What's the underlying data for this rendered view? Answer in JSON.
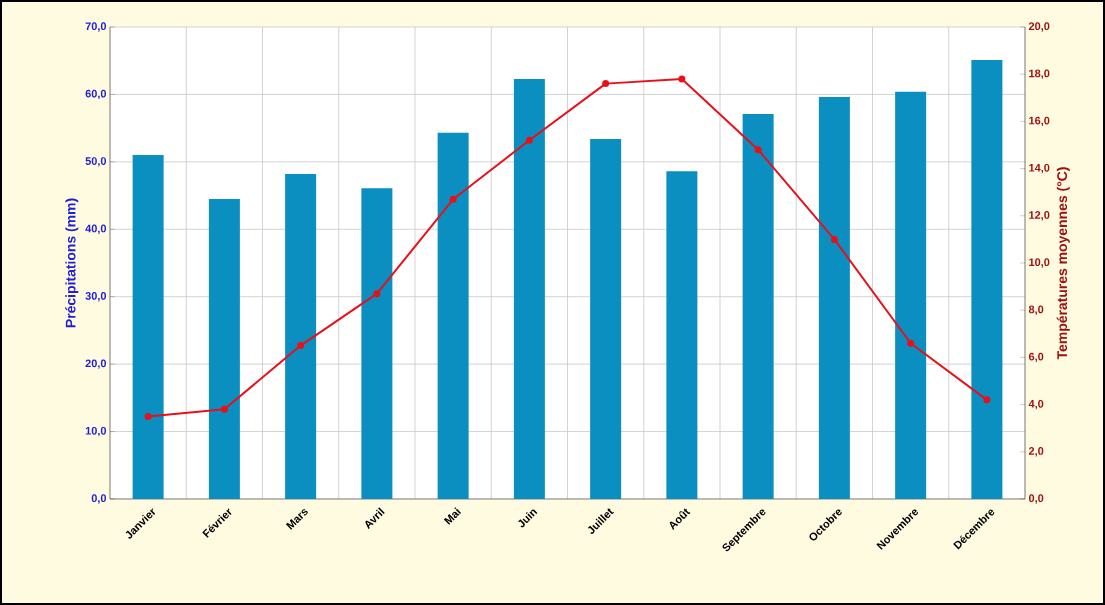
{
  "chart_data": {
    "type": "bar",
    "ylabel": "Précipitations (mm)",
    "y2label": "Températures moyennes (°C)",
    "categories": [
      "Janvier",
      "Février",
      "Mars",
      "Avril",
      "Mai",
      "Juin",
      "Juillet",
      "Août",
      "Septembre",
      "Octobre",
      "Novembre",
      "Décembre"
    ],
    "series": [
      {
        "color": "#0a8fc0",
        "values": [
          51.0,
          44.5,
          48.2,
          46.1,
          54.3,
          62.3,
          53.4,
          48.6,
          57.1,
          59.6,
          60.4,
          65.1
        ]
      },
      {
        "type": "line",
        "axis": "y2",
        "color": "#e8101a",
        "values": [
          3.5,
          3.8,
          6.5,
          8.7,
          12.7,
          15.2,
          17.6,
          17.8,
          14.8,
          11.0,
          6.6,
          4.2
        ]
      }
    ],
    "ylim": [
      0,
      70
    ],
    "yticks": [
      {
        "value": 0,
        "label": "0,0"
      },
      {
        "value": 10,
        "label": "10,0"
      },
      {
        "value": 20,
        "label": "20,0"
      },
      {
        "value": 30,
        "label": "30,0"
      },
      {
        "value": 40,
        "label": "40,0"
      },
      {
        "value": 50,
        "label": "50,0"
      },
      {
        "value": 60,
        "label": "60,0"
      },
      {
        "value": 70,
        "label": "70,0"
      }
    ],
    "y2lim": [
      0,
      20
    ],
    "y2ticks": [
      {
        "value": 0,
        "label": "0,0"
      },
      {
        "value": 2,
        "label": "2,0"
      },
      {
        "value": 4,
        "label": "4,0"
      },
      {
        "value": 6,
        "label": "6,0"
      },
      {
        "value": 8,
        "label": "8,0"
      },
      {
        "value": 10,
        "label": "10,0"
      },
      {
        "value": 12,
        "label": "12,0"
      },
      {
        "value": 14,
        "label": "14,0"
      },
      {
        "value": 16,
        "label": "16,0"
      },
      {
        "value": 18,
        "label": "18,0"
      },
      {
        "value": 20,
        "label": "20,0"
      }
    ],
    "grid": true,
    "marker": "circle",
    "line_style": "solid"
  }
}
